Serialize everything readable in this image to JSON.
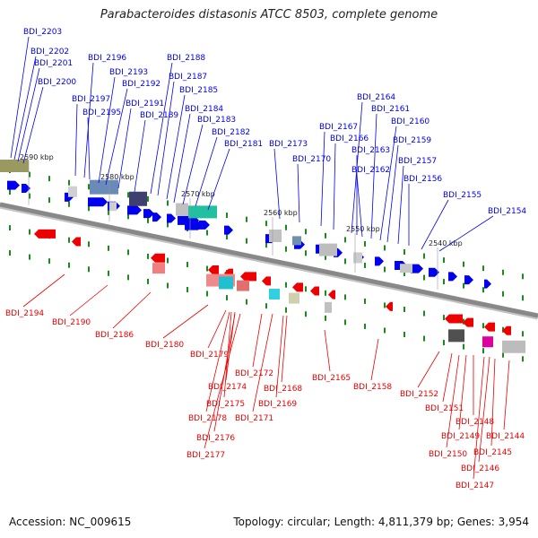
{
  "title": "Parabacteroides distasonis ATCC 8503, complete genome",
  "footer": {
    "accession": "Accession: NC_009615",
    "stats": "Topology: circular; Length: 4,811,379 bp; Genes: 3,954"
  },
  "colors": {
    "forward": "#0000ee",
    "reverse": "#ee0000",
    "backbone": "#888888",
    "tick": "#1a8a1a"
  },
  "ticks": [
    {
      "label": "2590 kbp"
    },
    {
      "label": "2580 kbp"
    },
    {
      "label": "2570 kbp"
    },
    {
      "label": "2560 kbp"
    },
    {
      "label": "2550 kbp"
    },
    {
      "label": "2540 kbp"
    }
  ],
  "forward_labels": [
    "BDI_2203",
    "BDI_2202",
    "BDI_2201",
    "BDI_2200",
    "BDI_2197",
    "BDI_2196",
    "BDI_2195",
    "BDI_2193",
    "BDI_2192",
    "BDI_2191",
    "BDI_2189",
    "BDI_2188",
    "BDI_2187",
    "BDI_2185",
    "BDI_2184",
    "BDI_2183",
    "BDI_2182",
    "BDI_2181",
    "BDI_2173",
    "BDI_2170",
    "BDI_2167",
    "BDI_2166",
    "BDI_2164",
    "BDI_2163",
    "BDI_2162",
    "BDI_2161",
    "BDI_2160",
    "BDI_2159",
    "BDI_2157",
    "BDI_2156",
    "BDI_2155",
    "BDI_2154"
  ],
  "reverse_labels": [
    "BDI_2194",
    "BDI_2190",
    "BDI_2186",
    "BDI_2180",
    "BDI_2179",
    "BDI_2172",
    "BDI_2174",
    "BDI_2168",
    "BDI_2175",
    "BDI_2169",
    "BDI_2178",
    "BDI_2171",
    "BDI_2176",
    "BDI_2177",
    "BDI_2165",
    "BDI_2158",
    "BDI_2152",
    "BDI_2151",
    "BDI_2148",
    "BDI_2144",
    "BDI_2149",
    "BDI_2145",
    "BDI_2150",
    "BDI_2146",
    "BDI_2147"
  ]
}
